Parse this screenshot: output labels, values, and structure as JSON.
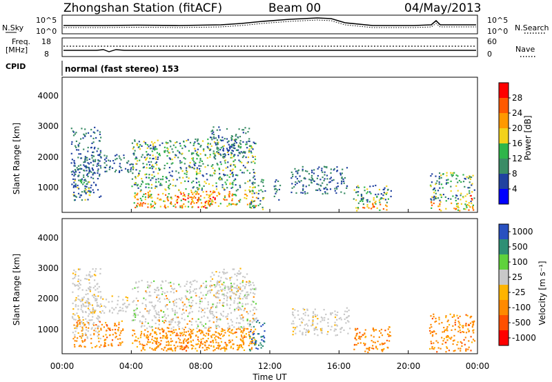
{
  "header": {
    "station": "Zhongshan Station (fitACF)",
    "beam": "Beam 00",
    "date": "04/May/2013"
  },
  "status_panels": {
    "nsky_label": "N.Sky",
    "nsearch_label": "N.Search",
    "noise_ticks": [
      "10^5",
      "10^0"
    ],
    "freq_label": "Freq.",
    "freq_unit": "[MHz]",
    "freq_ticks": [
      "18",
      "8"
    ],
    "nave_label": "Nave",
    "nave_ticks": [
      "60",
      "0"
    ],
    "cpid_label": "CPID",
    "cpid_text": "normal (fast stereo) 153"
  },
  "chart_data": [
    {
      "type": "heatmap",
      "title": "",
      "xlabel": "Time UT",
      "ylabel": "Slant Range [km]",
      "x_ticks": [
        "00:00",
        "04:00",
        "08:00",
        "12:00",
        "16:00",
        "20:00",
        "00:00"
      ],
      "x_range_hours": [
        0,
        24
      ],
      "y_ticks": [
        "1000",
        "2000",
        "3000",
        "4000"
      ],
      "ylim_km": [
        180,
        4600
      ],
      "colorbar": {
        "label": "Power [dB]",
        "ticks": [
          "4",
          "8",
          "12",
          "16",
          "20",
          "24",
          "28"
        ],
        "range": [
          0,
          32
        ],
        "colors": [
          "#0000ff",
          "#2142a0",
          "#3a8c66",
          "#2fb54a",
          "#f2d21a",
          "#ff9900",
          "#ff5a00",
          "#ff0000"
        ]
      },
      "regions": [
        {
          "t0": 0.5,
          "t1": 2.2,
          "r0": 700,
          "r1": 3000,
          "level": "low"
        },
        {
          "t0": 1.0,
          "t1": 4.0,
          "r0": 1500,
          "r1": 2100,
          "level": "low"
        },
        {
          "t0": 0.6,
          "t1": 1.6,
          "r0": 600,
          "r1": 1300,
          "level": "mid"
        },
        {
          "t0": 4.0,
          "t1": 11.2,
          "r0": 350,
          "r1": 2600,
          "level": "mixed"
        },
        {
          "t0": 6.5,
          "t1": 8.8,
          "r0": 350,
          "r1": 900,
          "level": "high"
        },
        {
          "t0": 8.5,
          "t1": 10.8,
          "r0": 2000,
          "r1": 3000,
          "level": "low"
        },
        {
          "t0": 10.8,
          "t1": 11.7,
          "r0": 300,
          "r1": 1300,
          "level": "mid"
        },
        {
          "t0": 12.2,
          "t1": 12.6,
          "r0": 600,
          "r1": 1400,
          "level": "low"
        },
        {
          "t0": 13.2,
          "t1": 16.6,
          "r0": 800,
          "r1": 1700,
          "level": "low"
        },
        {
          "t0": 16.8,
          "t1": 19.0,
          "r0": 250,
          "r1": 1100,
          "level": "mixed"
        },
        {
          "t0": 17.8,
          "t1": 18.2,
          "r0": 300,
          "r1": 700,
          "level": "high"
        },
        {
          "t0": 21.2,
          "t1": 23.8,
          "r0": 250,
          "r1": 1500,
          "level": "mixed"
        },
        {
          "t0": 23.3,
          "t1": 23.7,
          "r0": 350,
          "r1": 800,
          "level": "high"
        }
      ]
    },
    {
      "type": "heatmap",
      "title": "",
      "xlabel": "Time UT",
      "ylabel": "Slant Range [km]",
      "x_ticks": [
        "00:00",
        "04:00",
        "08:00",
        "12:00",
        "16:00",
        "20:00",
        "00:00"
      ],
      "x_range_hours": [
        0,
        24
      ],
      "y_ticks": [
        "1000",
        "2000",
        "3000",
        "4000"
      ],
      "ylim_km": [
        180,
        4600
      ],
      "colorbar": {
        "label": "Velocity [m s⁻¹]",
        "ticks": [
          "1000",
          "500",
          "100",
          "25",
          "-25",
          "-100",
          "-500",
          "-1000"
        ],
        "colors": [
          "#2850c0",
          "#2e8f74",
          "#5fd23c",
          "#c8c8c8",
          "#ffb400",
          "#ff8a00",
          "#ff5000",
          "#ff0000"
        ]
      },
      "regions": [
        {
          "t0": 0.5,
          "t1": 2.2,
          "r0": 700,
          "r1": 3000,
          "level": "grey"
        },
        {
          "t0": 1.0,
          "t1": 4.0,
          "r0": 1500,
          "r1": 2100,
          "level": "grey"
        },
        {
          "t0": 0.6,
          "t1": 3.5,
          "r0": 400,
          "r1": 1300,
          "level": "orange"
        },
        {
          "t0": 4.0,
          "t1": 11.2,
          "r0": 350,
          "r1": 2600,
          "level": "mixed"
        },
        {
          "t0": 4.5,
          "t1": 10.5,
          "r0": 300,
          "r1": 1000,
          "level": "orange"
        },
        {
          "t0": 8.5,
          "t1": 10.8,
          "r0": 2000,
          "r1": 3000,
          "level": "grey"
        },
        {
          "t0": 10.8,
          "t1": 11.7,
          "r0": 300,
          "r1": 1300,
          "level": "blue"
        },
        {
          "t0": 13.2,
          "t1": 16.6,
          "r0": 800,
          "r1": 1700,
          "level": "grey"
        },
        {
          "t0": 16.8,
          "t1": 19.0,
          "r0": 250,
          "r1": 1100,
          "level": "orange"
        },
        {
          "t0": 21.2,
          "t1": 23.8,
          "r0": 250,
          "r1": 1500,
          "level": "orange"
        }
      ]
    }
  ]
}
